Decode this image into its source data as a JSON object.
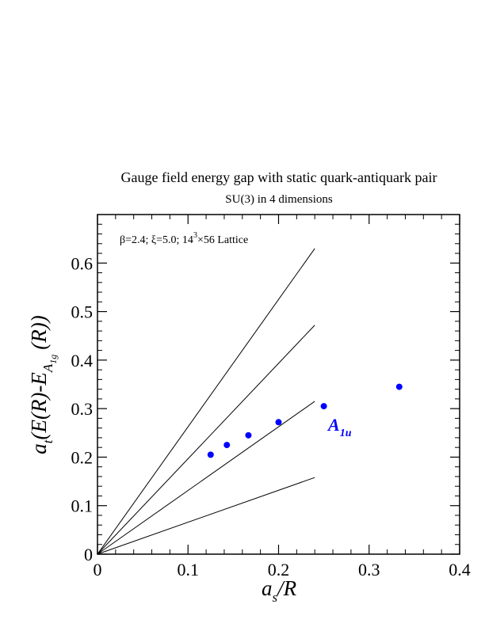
{
  "chart_data": {
    "type": "scatter",
    "title": "Gauge field energy gap with static quark-antiquark pair",
    "subtitle": "SU(3) in 4 dimensions",
    "annotation": {
      "pre": "β=2.4;  ξ=5.0;  14",
      "sup": "3",
      "post": "×56 Lattice"
    },
    "xlabel": {
      "main": "a",
      "sub": "s",
      "rest": "/R"
    },
    "ylabel": {
      "main": "a",
      "sub": "t",
      "rest": "(E(R)-E",
      "sub2": "A",
      "sub3": "1g",
      "end": "(R))"
    },
    "xlim": [
      0,
      0.4
    ],
    "ylim": [
      0,
      0.7
    ],
    "xticks": [
      0,
      0.1,
      0.2,
      0.3,
      0.4
    ],
    "yticks": [
      0,
      0.1,
      0.2,
      0.3,
      0.4,
      0.5,
      0.6
    ],
    "xtick_labels": [
      "0",
      "0.1",
      "0.2",
      "0.3",
      "0.4"
    ],
    "ytick_labels": [
      "0",
      "0.1",
      "0.2",
      "0.3",
      "0.4",
      "0.5",
      "0.6"
    ],
    "series": [
      {
        "label_main": "A",
        "label_sub": "1u",
        "color": "#0000ff",
        "x": [
          0.125,
          0.1429,
          0.1667,
          0.2,
          0.25,
          0.3333
        ],
        "y": [
          0.205,
          0.225,
          0.245,
          0.272,
          0.305,
          0.345
        ]
      }
    ],
    "reference_lines": [
      {
        "x": [
          0,
          0.24
        ],
        "y": [
          0,
          0.63
        ]
      },
      {
        "x": [
          0,
          0.24
        ],
        "y": [
          0,
          0.472
        ]
      },
      {
        "x": [
          0,
          0.24
        ],
        "y": [
          0,
          0.315
        ]
      },
      {
        "x": [
          0,
          0.24
        ],
        "y": [
          0,
          0.158
        ]
      }
    ],
    "grid": false
  }
}
